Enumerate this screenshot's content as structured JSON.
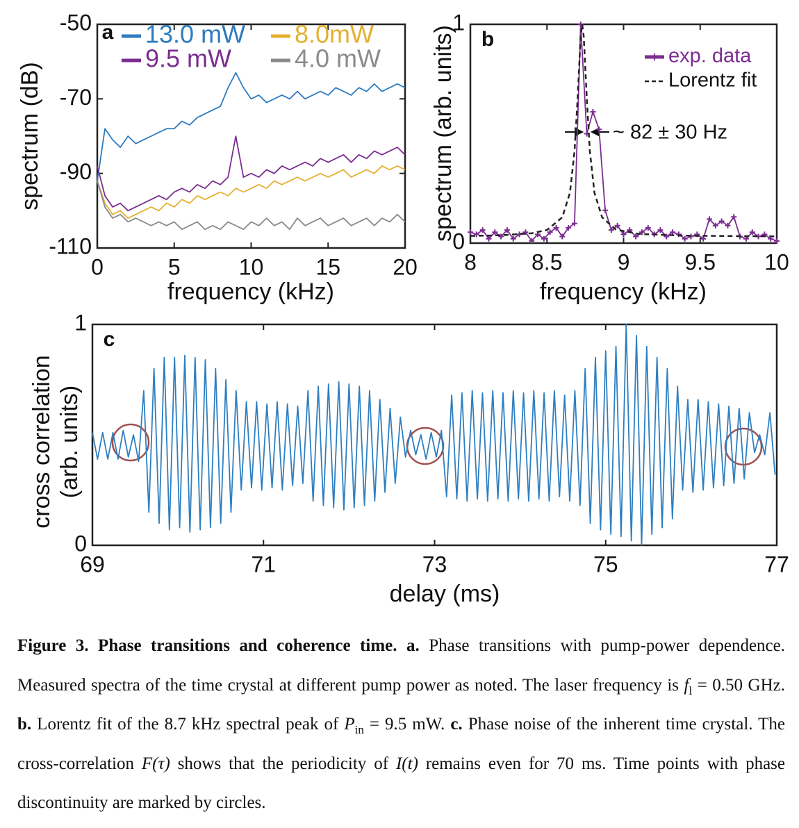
{
  "chart_data": [
    {
      "type": "line",
      "panel": "a",
      "xlabel": "frequency (kHz)",
      "ylabel": "spectrum (dB)",
      "xlim": [
        0,
        20
      ],
      "ylim": [
        -110,
        -50
      ],
      "xticks": [
        0,
        5,
        10,
        15,
        20
      ],
      "yticks": [
        -50,
        -70,
        -90,
        -110
      ],
      "x": [
        0,
        0.5,
        1,
        1.5,
        2,
        2.5,
        3,
        3.5,
        4,
        4.5,
        5,
        5.5,
        6,
        6.5,
        7,
        7.5,
        8,
        8.5,
        9,
        9.5,
        10,
        10.5,
        11,
        11.5,
        12,
        12.5,
        13,
        13.5,
        14,
        14.5,
        15,
        15.5,
        16,
        16.5,
        17,
        17.5,
        18,
        18.5,
        19,
        19.5,
        20
      ],
      "series": [
        {
          "name": "13.0 mW",
          "color": "#2c7bbf",
          "values": [
            -92,
            -78,
            -81,
            -83,
            -80,
            -82,
            -81,
            -80,
            -79,
            -78,
            -78,
            -76,
            -77,
            -75,
            -74,
            -73,
            -72,
            -67,
            -63,
            -67,
            -70,
            -69,
            -71,
            -70,
            -69,
            -70,
            -68,
            -70,
            -69,
            -68,
            -69,
            -67,
            -68,
            -69,
            -67,
            -68,
            -66,
            -68,
            -67,
            -66,
            -67
          ]
        },
        {
          "name": "9.5 mW",
          "color": "#7b2d90",
          "values": [
            -88,
            -96,
            -99,
            -98,
            -100,
            -99,
            -98,
            -97,
            -96,
            -97,
            -95,
            -94,
            -95,
            -93,
            -94,
            -92,
            -93,
            -91,
            -80,
            -91,
            -90,
            -91,
            -89,
            -90,
            -88,
            -89,
            -88,
            -87,
            -88,
            -86,
            -87,
            -86,
            -85,
            -87,
            -85,
            -86,
            -84,
            -85,
            -84,
            -83,
            -85
          ]
        },
        {
          "name": "8.0mW",
          "color": "#e5b030",
          "values": [
            -92,
            -98,
            -101,
            -100,
            -102,
            -101,
            -100,
            -99,
            -100,
            -98,
            -99,
            -97,
            -98,
            -96,
            -97,
            -96,
            -95,
            -96,
            -94,
            -95,
            -94,
            -93,
            -94,
            -92,
            -93,
            -92,
            -91,
            -92,
            -91,
            -90,
            -91,
            -90,
            -89,
            -91,
            -90,
            -89,
            -90,
            -88,
            -89,
            -88,
            -89
          ]
        },
        {
          "name": "4.0 mW",
          "color": "#8a8a8a",
          "values": [
            -92,
            -99,
            -102,
            -101,
            -103,
            -102,
            -103,
            -104,
            -103,
            -104,
            -103,
            -105,
            -104,
            -103,
            -105,
            -104,
            -105,
            -103,
            -104,
            -105,
            -103,
            -104,
            -102,
            -104,
            -103,
            -105,
            -102,
            -104,
            -103,
            -102,
            -104,
            -103,
            -102,
            -104,
            -103,
            -102,
            -104,
            -102,
            -103,
            -101,
            -103
          ]
        }
      ]
    },
    {
      "type": "line",
      "panel": "b",
      "xlabel": "frequency (kHz)",
      "ylabel": "spectrum (arb. units)",
      "xlim": [
        8,
        10
      ],
      "ylim": [
        0,
        1
      ],
      "xticks": [
        8,
        8.5,
        9,
        9.5,
        10
      ],
      "yticks": [
        0,
        1
      ],
      "annotation": "~ 82 ± 30 Hz",
      "series": [
        {
          "name": "exp. data",
          "color": "#7b2d90",
          "marker": "+",
          "x": [
            8,
            8.04,
            8.08,
            8.12,
            8.16,
            8.2,
            8.24,
            8.28,
            8.32,
            8.36,
            8.4,
            8.44,
            8.48,
            8.52,
            8.56,
            8.6,
            8.64,
            8.68,
            8.72,
            8.76,
            8.8,
            8.84,
            8.88,
            8.92,
            8.96,
            9,
            9.04,
            9.08,
            9.12,
            9.16,
            9.2,
            9.24,
            9.28,
            9.32,
            9.36,
            9.4,
            9.44,
            9.48,
            9.52,
            9.56,
            9.6,
            9.64,
            9.68,
            9.72,
            9.76,
            9.8,
            9.84,
            9.88,
            9.92,
            9.96,
            10
          ],
          "values": [
            0.05,
            0.04,
            0.06,
            0.02,
            0.05,
            0.03,
            0.06,
            0.02,
            0.04,
            0.05,
            0.01,
            0.04,
            0.02,
            0.05,
            0.07,
            0.03,
            0.07,
            0.09,
            1.0,
            0.5,
            0.6,
            0.52,
            0.15,
            0.06,
            0.08,
            0.04,
            0.06,
            0.03,
            0.05,
            0.07,
            0.04,
            0.06,
            0.03,
            0.05,
            0.04,
            0.02,
            0.03,
            0.04,
            0.02,
            0.11,
            0.08,
            0.1,
            0.08,
            0.12,
            0.03,
            0.02,
            0.05,
            0.03,
            0.04,
            0.02,
            0.01
          ]
        },
        {
          "name": "Lorentz fit",
          "color": "#222222",
          "dash": true,
          "x": [
            8,
            8.2,
            8.4,
            8.5,
            8.6,
            8.65,
            8.68,
            8.7,
            8.72,
            8.73,
            8.74,
            8.76,
            8.78,
            8.81,
            8.86,
            8.95,
            9.1,
            9.4,
            10
          ],
          "values": [
            0.033,
            0.036,
            0.045,
            0.06,
            0.118,
            0.23,
            0.42,
            0.66,
            0.945,
            1.0,
            0.945,
            0.66,
            0.42,
            0.23,
            0.118,
            0.062,
            0.042,
            0.034,
            0.031
          ]
        }
      ]
    },
    {
      "type": "line",
      "panel": "c",
      "xlabel": "delay (ms)",
      "ylabel": [
        "cross correlation",
        "(arb. units)"
      ],
      "xlim": [
        69,
        77
      ],
      "ylim": [
        0,
        1
      ],
      "xticks": [
        69,
        71,
        73,
        75,
        77
      ],
      "yticks": [
        0,
        1
      ],
      "series": [
        {
          "name": "cross correlation",
          "color": "#2f7fc0",
          "x": [
            69,
            69.06,
            69.12,
            69.18,
            69.24,
            69.3,
            69.36,
            69.42,
            69.48,
            69.54,
            69.6,
            69.66,
            69.72,
            69.78,
            69.84,
            69.9,
            69.96,
            70.02,
            70.08,
            70.14,
            70.2,
            70.26,
            70.32,
            70.38,
            70.44,
            70.5,
            70.56,
            70.62,
            70.68,
            70.74,
            70.8,
            70.86,
            70.92,
            70.98,
            71.04,
            71.1,
            71.16,
            71.22,
            71.28,
            71.34,
            71.4,
            71.46,
            71.52,
            71.58,
            71.64,
            71.7,
            71.76,
            71.82,
            71.88,
            71.94,
            72,
            72.06,
            72.12,
            72.18,
            72.24,
            72.3,
            72.36,
            72.42,
            72.48,
            72.54,
            72.6,
            72.66,
            72.72,
            72.78,
            72.84,
            72.9,
            72.96,
            73.02,
            73.08,
            73.14,
            73.2,
            73.26,
            73.32,
            73.38,
            73.44,
            73.5,
            73.56,
            73.62,
            73.68,
            73.74,
            73.8,
            73.86,
            73.92,
            73.98,
            74.04,
            74.1,
            74.16,
            74.22,
            74.28,
            74.34,
            74.4,
            74.46,
            74.52,
            74.58,
            74.64,
            74.7,
            74.76,
            74.82,
            74.88,
            74.94,
            75,
            75.06,
            75.12,
            75.18,
            75.24,
            75.3,
            75.36,
            75.42,
            75.48,
            75.54,
            75.6,
            75.66,
            75.72,
            75.78,
            75.84,
            75.9,
            75.96,
            76.02,
            76.08,
            76.14,
            76.2,
            76.26,
            76.32,
            76.38,
            76.44,
            76.5,
            76.56,
            76.62,
            76.68,
            76.74,
            76.8,
            76.86,
            76.92,
            76.98
          ],
          "values": [
            0.51,
            0.39,
            0.51,
            0.39,
            0.51,
            0.39,
            0.52,
            0.4,
            0.5,
            0.38,
            0.7,
            0.15,
            0.8,
            0.1,
            0.85,
            0.07,
            0.85,
            0.08,
            0.86,
            0.06,
            0.85,
            0.07,
            0.84,
            0.08,
            0.8,
            0.1,
            0.75,
            0.15,
            0.7,
            0.25,
            0.65,
            0.26,
            0.65,
            0.25,
            0.64,
            0.26,
            0.65,
            0.25,
            0.64,
            0.27,
            0.63,
            0.28,
            0.7,
            0.2,
            0.72,
            0.18,
            0.73,
            0.17,
            0.74,
            0.16,
            0.73,
            0.17,
            0.72,
            0.18,
            0.7,
            0.2,
            0.66,
            0.24,
            0.62,
            0.28,
            0.58,
            0.4,
            0.52,
            0.41,
            0.5,
            0.39,
            0.51,
            0.4,
            0.52,
            0.22,
            0.68,
            0.21,
            0.69,
            0.2,
            0.7,
            0.21,
            0.69,
            0.2,
            0.7,
            0.21,
            0.69,
            0.2,
            0.7,
            0.21,
            0.69,
            0.2,
            0.7,
            0.21,
            0.69,
            0.2,
            0.7,
            0.22,
            0.68,
            0.2,
            0.7,
            0.18,
            0.8,
            0.1,
            0.85,
            0.07,
            0.88,
            0.05,
            0.9,
            0.04,
            1.0,
            0.02,
            0.95,
            0.0,
            0.9,
            0.05,
            0.85,
            0.08,
            0.8,
            0.12,
            0.72,
            0.25,
            0.66,
            0.24,
            0.66,
            0.25,
            0.65,
            0.26,
            0.64,
            0.27,
            0.63,
            0.28,
            0.62,
            0.3,
            0.6,
            0.42,
            0.5,
            0.41,
            0.6,
            0.32
          ]
        }
      ]
    }
  ],
  "caption": [
    "Figure 3. Phase transitions and coherence time. a.",
    " Phase transitions with pump-power dependence. Measured spectra of the time crystal at different pump power as noted. The laser frequency is ",
    "f",
    "l",
    " = 0.50 GHz. ",
    "b.",
    " Lorentz fit of the 8.7 kHz spectral peak of ",
    "P",
    "in",
    " = 9.5 mW. ",
    "c.",
    " Phase noise of the inherent time crystal. The cross-correlation ",
    "F(τ)",
    " shows that the periodicity of ",
    "I(t)",
    " remains even for 70 ms. Time points with phase discontinuity are marked by circles."
  ]
}
